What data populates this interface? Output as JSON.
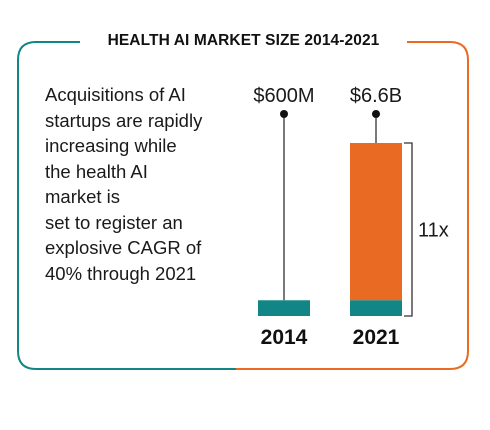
{
  "title": "HEALTH AI MARKET SIZE 2014-2021",
  "description": [
    "Acquisitions of AI",
    "startups are rapidly",
    "increasing while",
    "the health AI",
    "market is",
    "set to register an",
    "explosive CAGR of",
    "40% through 2021"
  ],
  "colors": {
    "teal": "#128686",
    "orange": "#e86a23",
    "text": "#1a1a1a"
  },
  "chart_data": {
    "type": "bar",
    "title": "HEALTH AI MARKET SIZE 2014-2021",
    "categories": [
      "2014",
      "2021"
    ],
    "values": [
      0.6,
      6.6
    ],
    "unit": "billion USD",
    "value_labels": [
      "$600M",
      "$6.6B"
    ],
    "growth_label": "11x",
    "ylim": [
      0,
      6.6
    ],
    "legend": "none",
    "grid": false
  }
}
